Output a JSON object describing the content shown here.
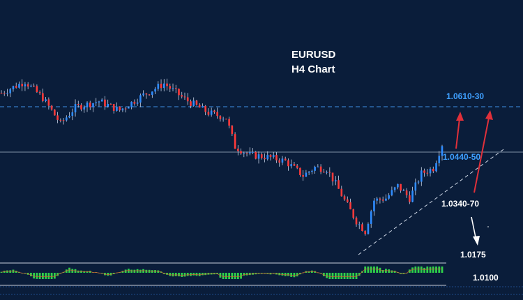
{
  "chart_data": {
    "type": "candlestick",
    "symbol": "EURUSD",
    "timeframe": "H4 Chart",
    "title_line1": "EURUSD",
    "title_line2": "H4 Chart",
    "ylim": [
      1.015,
      1.065
    ],
    "candle_count": 150,
    "close_path": [
      [
        0,
        1.056
      ],
      [
        8,
        1.0588
      ],
      [
        14,
        1.0548
      ],
      [
        20,
        1.0486
      ],
      [
        25,
        1.0525
      ],
      [
        33,
        1.054
      ],
      [
        40,
        1.0518
      ],
      [
        48,
        1.0555
      ],
      [
        55,
        1.0583
      ],
      [
        62,
        1.0545
      ],
      [
        70,
        1.0512
      ],
      [
        76,
        1.05
      ],
      [
        79,
        1.043
      ],
      [
        84,
        1.041
      ],
      [
        90,
        1.0405
      ],
      [
        96,
        1.0395
      ],
      [
        102,
        1.036
      ],
      [
        106,
        1.038
      ],
      [
        110,
        1.0376
      ],
      [
        113,
        1.034
      ],
      [
        116,
        1.03
      ],
      [
        120,
        1.025
      ],
      [
        123,
        1.0225
      ],
      [
        126,
        1.03
      ],
      [
        130,
        1.0305
      ],
      [
        134,
        1.0335
      ],
      [
        138,
        1.0305
      ],
      [
        142,
        1.0365
      ],
      [
        146,
        1.0378
      ],
      [
        149,
        1.0436
      ]
    ],
    "levels": [
      {
        "label": "1.0610-30",
        "value": 1.062,
        "color": "#3fa0ff",
        "style": "dashed"
      },
      {
        "label": "1.0440-50",
        "value": 1.0445,
        "color": "#3fa0ff",
        "style": "solid"
      },
      {
        "label": "1.0340-70",
        "value": 1.0355,
        "color": "#ffffff"
      },
      {
        "label": "1.0175",
        "value": 1.0175,
        "color": "#ffffff"
      },
      {
        "label": "1.0100",
        "value": 1.01,
        "color": "#ffffff"
      }
    ],
    "arrows": [
      {
        "direction": "up",
        "color": "#e0303a"
      },
      {
        "direction": "up",
        "color": "#e0303a"
      },
      {
        "direction": "down",
        "color": "#ffffff"
      }
    ],
    "trendline": {
      "style": "dashed",
      "color": "#cfd8e6"
    },
    "indicator": "MACD histogram",
    "colors": {
      "background": "#0a1d3a",
      "bull": "#2f8cff",
      "bear": "#ff3a3a",
      "wick": "#c8d4e8",
      "histogram": "#2ed14a"
    },
    "grid": false
  }
}
